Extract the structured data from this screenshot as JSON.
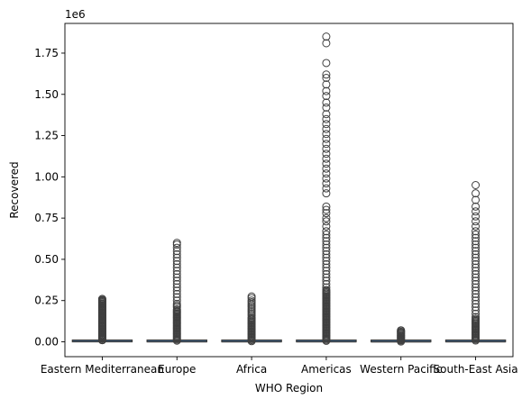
{
  "chart_data": {
    "type": "box",
    "title": "",
    "xlabel": "WHO Region",
    "ylabel": "Recovered",
    "y_offset_label": "1e6",
    "ylim": [
      -0.09,
      1.93
    ],
    "yticks": [
      0.0,
      0.25,
      0.5,
      0.75,
      1.0,
      1.25,
      1.5,
      1.75
    ],
    "ytick_labels": [
      "0.00",
      "0.25",
      "0.50",
      "0.75",
      "1.00",
      "1.25",
      "1.50",
      "1.75"
    ],
    "categories": [
      "Eastern Mediterranean",
      "Europe",
      "Africa",
      "Americas",
      "Western Pacific",
      "South-East Asia"
    ],
    "grid": false,
    "box_color": "#3b75af",
    "boxes": [
      {
        "category": "Eastern Mediterranean",
        "q1": 0.0,
        "median": 0.001,
        "q3": 0.003,
        "whisker_low": 0.0,
        "whisker_high": 0.008,
        "outliers_dense": [
          0.01,
          0.26
        ],
        "outliers": [
          0.01,
          0.02,
          0.03,
          0.04,
          0.05,
          0.06,
          0.07,
          0.08,
          0.09,
          0.1,
          0.11,
          0.12,
          0.13,
          0.14,
          0.15,
          0.16,
          0.17,
          0.18,
          0.19,
          0.2,
          0.21,
          0.22,
          0.23,
          0.24,
          0.25,
          0.26
        ]
      },
      {
        "category": "Europe",
        "q1": 0.0,
        "median": 0.0005,
        "q3": 0.002,
        "whisker_low": 0.0,
        "whisker_high": 0.005,
        "outliers_dense": [
          0.007,
          0.2
        ],
        "outliers": [
          0.21,
          0.22,
          0.23,
          0.25,
          0.27,
          0.29,
          0.31,
          0.33,
          0.35,
          0.37,
          0.39,
          0.41,
          0.43,
          0.45,
          0.47,
          0.49,
          0.51,
          0.53,
          0.55,
          0.57,
          0.59,
          0.6
        ]
      },
      {
        "category": "Africa",
        "q1": 0.0,
        "median": 0.0002,
        "q3": 0.001,
        "whisker_low": 0.0,
        "whisker_high": 0.003,
        "outliers_dense": [
          0.004,
          0.15
        ],
        "outliers": [
          0.16,
          0.17,
          0.18,
          0.19,
          0.2,
          0.21,
          0.22,
          0.23,
          0.24,
          0.25,
          0.265,
          0.275
        ]
      },
      {
        "category": "Americas",
        "q1": 0.0,
        "median": 0.0003,
        "q3": 0.002,
        "whisker_low": 0.0,
        "whisker_high": 0.005,
        "outliers_dense": [
          0.006,
          0.32
        ],
        "outliers": [
          0.33,
          0.35,
          0.37,
          0.39,
          0.41,
          0.43,
          0.45,
          0.47,
          0.49,
          0.51,
          0.53,
          0.55,
          0.57,
          0.59,
          0.61,
          0.63,
          0.65,
          0.67,
          0.7,
          0.73,
          0.75,
          0.78,
          0.8,
          0.82,
          0.9,
          0.93,
          0.96,
          0.99,
          1.02,
          1.05,
          1.08,
          1.11,
          1.14,
          1.17,
          1.2,
          1.23,
          1.26,
          1.29,
          1.32,
          1.35,
          1.38,
          1.42,
          1.45,
          1.49,
          1.52,
          1.56,
          1.6,
          1.62,
          1.69,
          1.81,
          1.85
        ]
      },
      {
        "category": "Western Pacific",
        "q1": 0.0,
        "median": 0.0001,
        "q3": 0.0005,
        "whisker_low": 0.0,
        "whisker_high": 0.001,
        "outliers_dense": [
          0.002,
          0.07
        ],
        "outliers": [
          0.01,
          0.02,
          0.03,
          0.04,
          0.05,
          0.06,
          0.07
        ]
      },
      {
        "category": "South-East Asia",
        "q1": 0.0,
        "median": 0.0005,
        "q3": 0.003,
        "whisker_low": 0.0,
        "whisker_high": 0.007,
        "outliers_dense": [
          0.008,
          0.14
        ],
        "outliers": [
          0.15,
          0.17,
          0.19,
          0.21,
          0.23,
          0.25,
          0.27,
          0.29,
          0.31,
          0.33,
          0.35,
          0.37,
          0.39,
          0.41,
          0.43,
          0.45,
          0.47,
          0.49,
          0.51,
          0.53,
          0.55,
          0.57,
          0.59,
          0.61,
          0.63,
          0.65,
          0.67,
          0.7,
          0.73,
          0.76,
          0.79,
          0.82,
          0.86,
          0.9,
          0.95
        ]
      }
    ]
  }
}
